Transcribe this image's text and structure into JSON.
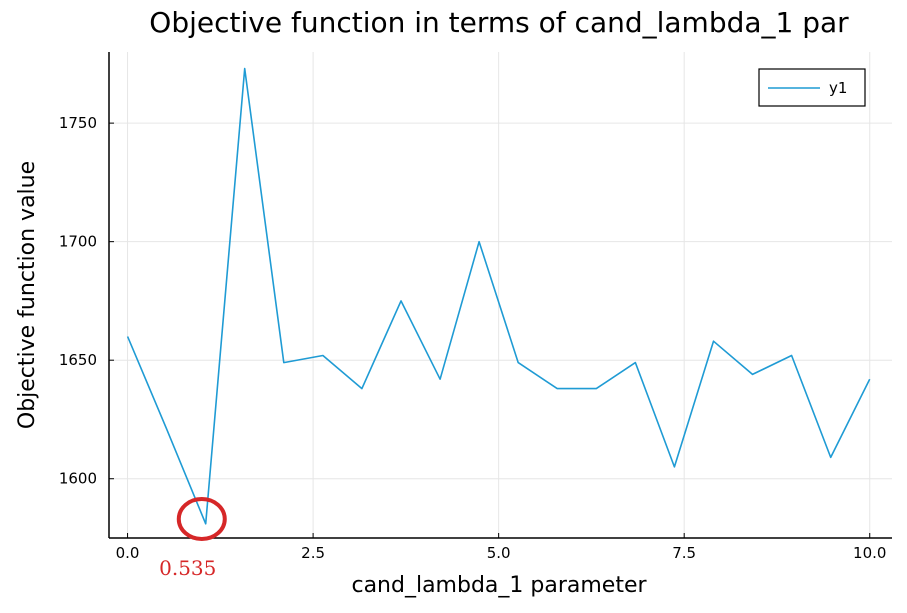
{
  "chart_data": {
    "type": "line",
    "title": "Objective function in terms of cand_lambda_1 par",
    "xlabel": "cand_lambda_1 parameter",
    "ylabel": "Objective function value",
    "xlim": [
      -0.25,
      10.3
    ],
    "ylim": [
      1575,
      1780
    ],
    "xticks": [
      0.0,
      2.5,
      5.0,
      7.5,
      10.0
    ],
    "xtick_labels": [
      "0.0",
      "2.5",
      "5.0",
      "7.5",
      "10.0"
    ],
    "yticks": [
      1600,
      1650,
      1700,
      1750
    ],
    "ytick_labels": [
      "1600",
      "1650",
      "1700",
      "1750"
    ],
    "grid": true,
    "legend_position": "top-right",
    "series": [
      {
        "name": "y1",
        "color": "#1f9bd4",
        "x": [
          0.0,
          0.526,
          1.053,
          1.579,
          2.105,
          2.632,
          3.158,
          3.684,
          4.211,
          4.737,
          5.263,
          5.789,
          6.316,
          6.842,
          7.368,
          7.895,
          8.421,
          8.947,
          9.474,
          10.0
        ],
        "y": [
          1660,
          1621,
          1581,
          1773,
          1649,
          1652,
          1638,
          1675,
          1642,
          1700,
          1649,
          1638,
          1638,
          1649,
          1605,
          1658,
          1644,
          1652,
          1609,
          1642
        ]
      }
    ],
    "annotations": [
      {
        "text": "0.535",
        "x": 1.0,
        "y": 1583,
        "color": "#d62728",
        "shape": "circle"
      }
    ]
  }
}
